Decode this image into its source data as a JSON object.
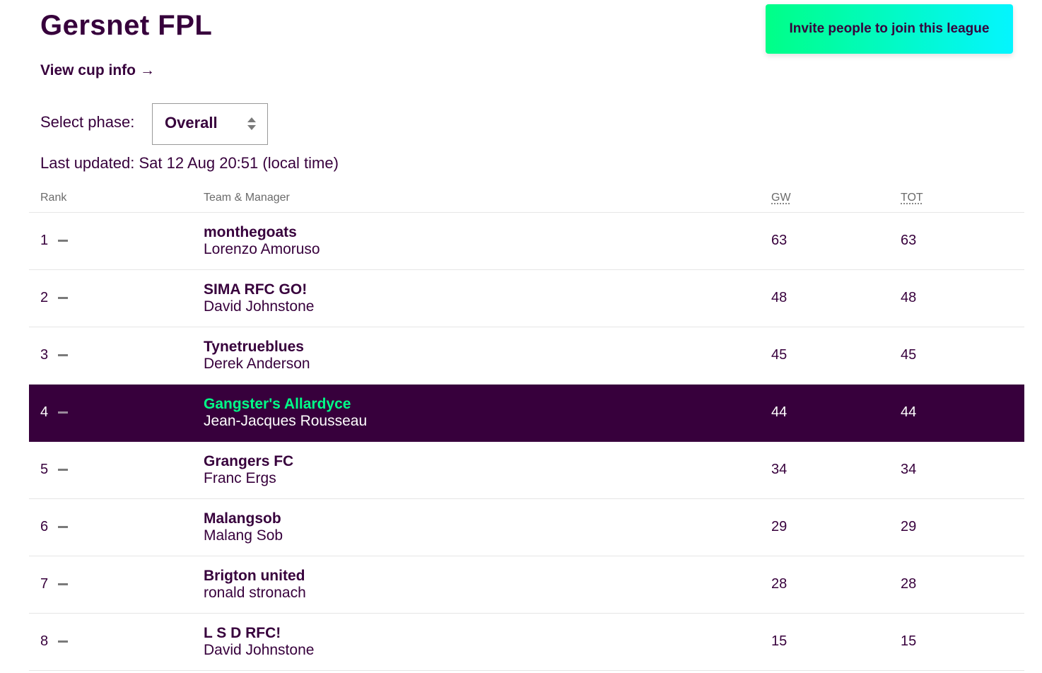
{
  "league": {
    "title": "Gersnet FPL",
    "invite_label": "Invite people to join this league",
    "cup_link_label": "View cup info",
    "cup_link_arrow": "→"
  },
  "phase": {
    "label": "Select phase:",
    "selected": "Overall"
  },
  "last_updated": "Last updated: Sat 12 Aug 20:51 (local time)",
  "table": {
    "headers": {
      "rank": "Rank",
      "team": "Team & Manager",
      "gw": "GW",
      "tot": "TOT"
    },
    "rows": [
      {
        "rank": "1",
        "team": "monthegoats",
        "manager": "Lorenzo Amoruso",
        "gw": "63",
        "tot": "63",
        "active": false
      },
      {
        "rank": "2",
        "team": "SIMA RFC GO!",
        "manager": "David Johnstone",
        "gw": "48",
        "tot": "48",
        "active": false
      },
      {
        "rank": "3",
        "team": "Tynetrueblues",
        "manager": "Derek Anderson",
        "gw": "45",
        "tot": "45",
        "active": false
      },
      {
        "rank": "4",
        "team": "Gangster's Allardyce",
        "manager": "Jean-Jacques Rousseau",
        "gw": "44",
        "tot": "44",
        "active": true
      },
      {
        "rank": "5",
        "team": "Grangers FC",
        "manager": "Franc Ergs",
        "gw": "34",
        "tot": "34",
        "active": false
      },
      {
        "rank": "6",
        "team": "Malangsob",
        "manager": "Malang Sob",
        "gw": "29",
        "tot": "29",
        "active": false
      },
      {
        "rank": "7",
        "team": "Brigton united",
        "manager": "ronald stronach",
        "gw": "28",
        "tot": "28",
        "active": false
      },
      {
        "rank": "8",
        "team": "L S D RFC!",
        "manager": "David Johnstone",
        "gw": "15",
        "tot": "15",
        "active": false
      }
    ]
  },
  "colors": {
    "brand_purple": "#37003c",
    "accent_green": "#00ff87",
    "accent_cyan": "#04f5ff"
  },
  "icons": {
    "movement": "no-change-dash-icon",
    "select": "up-down-chevron-icon",
    "cup_link": "right-arrow-icon"
  }
}
